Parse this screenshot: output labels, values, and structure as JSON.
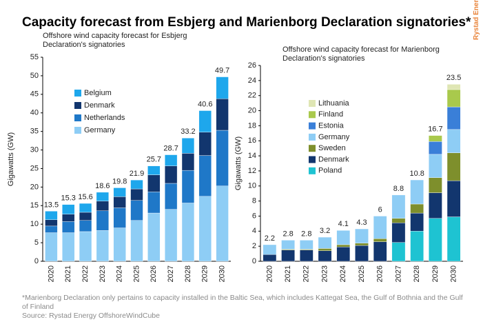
{
  "title": "Capacity forecast from Esbjerg and Marienborg Declaration signatories*",
  "logo": "Rystad Energy",
  "footnote": "*Marienborg Declaration only pertains to capacity installed in the Baltic Sea, which includes Kattegat Sea, the Gulf of Bothnia and the Gulf of Finland",
  "source": "Source: Rystad Energy OffshoreWindCube",
  "chart_data": [
    {
      "type": "bar",
      "stacked": true,
      "subtitle": "Offshore wind capacity forecast for Esbjerg Declaration's signatories",
      "y_label": "Gigawatts (GW)",
      "categories": [
        "2020",
        "2021",
        "2022",
        "2023",
        "2024",
        "2025",
        "2026",
        "2027",
        "2028",
        "2029",
        "2030"
      ],
      "series": [
        {
          "name": "Germany",
          "color": "#8ecdf5",
          "values": [
            7.7,
            7.7,
            8.0,
            8.3,
            9.0,
            11.0,
            13.0,
            14.0,
            15.7,
            17.5,
            20.3
          ]
        },
        {
          "name": "Netherlands",
          "color": "#1f78c8",
          "values": [
            1.8,
            3.0,
            3.0,
            5.3,
            5.4,
            5.4,
            5.7,
            7.0,
            8.8,
            11.0,
            15.0
          ]
        },
        {
          "name": "Denmark",
          "color": "#12366e",
          "values": [
            1.7,
            2.0,
            2.2,
            2.6,
            3.0,
            3.1,
            4.6,
            4.7,
            4.6,
            6.3,
            8.5
          ]
        },
        {
          "name": "Belgium",
          "color": "#1ea7ec",
          "values": [
            2.3,
            2.6,
            2.4,
            2.4,
            2.4,
            2.4,
            2.4,
            3.0,
            4.1,
            5.8,
            5.9
          ]
        }
      ],
      "totals": [
        13.5,
        15.3,
        15.6,
        18.6,
        19.8,
        21.9,
        25.7,
        28.7,
        33.2,
        40.6,
        49.7
      ],
      "ylim": [
        0,
        55
      ],
      "yticks": [
        0,
        5,
        10,
        15,
        20,
        25,
        30,
        35,
        40,
        45,
        50,
        55
      ],
      "legend": "upper left"
    },
    {
      "type": "bar",
      "stacked": true,
      "subtitle": "Offshore wind capacity forecast for Marienborg Declaration's signatories",
      "y_label": "Gigawatts (GW)",
      "categories": [
        "2020",
        "2021",
        "2022",
        "2023",
        "2024",
        "2025",
        "2026",
        "2027",
        "2028",
        "2029",
        "2030"
      ],
      "series": [
        {
          "name": "Poland",
          "color": "#1ec3d2",
          "values": [
            0,
            0,
            0,
            0,
            0,
            0,
            0,
            2.5,
            4.0,
            5.7,
            5.9
          ]
        },
        {
          "name": "Denmark",
          "color": "#12366e",
          "values": [
            0.9,
            1.5,
            1.5,
            1.4,
            1.9,
            2.1,
            2.6,
            2.6,
            2.4,
            3.4,
            4.8
          ]
        },
        {
          "name": "Sweden",
          "color": "#7e8f2c",
          "values": [
            0,
            0.1,
            0.1,
            0.3,
            0.3,
            0.3,
            0.4,
            0.6,
            1.2,
            2.0,
            3.7
          ]
        },
        {
          "name": "Germany",
          "color": "#8ecdf5",
          "values": [
            1.3,
            1.2,
            1.2,
            1.5,
            1.9,
            1.9,
            3.0,
            3.1,
            3.2,
            3.1,
            3.1
          ]
        },
        {
          "name": "Estonia",
          "color": "#3a7fd8",
          "values": [
            0,
            0,
            0,
            0,
            0,
            0,
            0,
            0,
            0,
            1.7,
            3.0
          ]
        },
        {
          "name": "Finland",
          "color": "#a9c94c",
          "values": [
            0,
            0,
            0,
            0,
            0,
            0,
            0,
            0,
            0,
            0.8,
            2.3
          ]
        },
        {
          "name": "Lithuania",
          "color": "#dfe6b4",
          "values": [
            0,
            0,
            0,
            0,
            0,
            0,
            0,
            0,
            0,
            0,
            0.7
          ]
        }
      ],
      "totals": [
        2.2,
        2.8,
        2.8,
        3.2,
        4.1,
        4.3,
        6.0,
        8.8,
        10.8,
        16.7,
        23.5
      ],
      "ylim": [
        0,
        26
      ],
      "yticks": [
        0,
        2,
        4,
        6,
        8,
        10,
        12,
        14,
        16,
        18,
        20,
        22,
        24,
        26
      ],
      "legend": "upper left"
    }
  ]
}
